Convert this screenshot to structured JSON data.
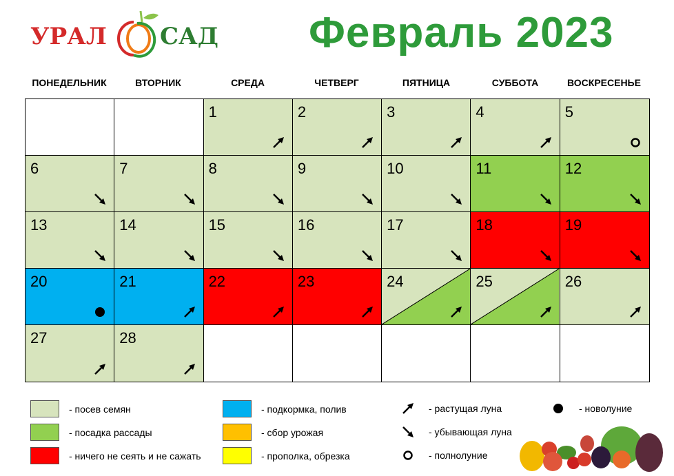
{
  "logo": {
    "text_left": "УРАЛ",
    "text_right": "САД"
  },
  "title": "Февраль 2023",
  "weekdays": [
    "ПОНЕДЕЛЬНИК",
    "ВТОРНИК",
    "СРЕДА",
    "ЧЕТВЕРГ",
    "ПЯТНИЦА",
    "СУББОТА",
    "ВОСКРЕСЕНЬЕ"
  ],
  "colors": {
    "seeds": "#d7e4bd",
    "seedlings": "#92d050",
    "nothing": "#ff0000",
    "feeding": "#00b0f0",
    "harvest": "#ffc000",
    "weeding": "#ffff00",
    "title": "#2e9b3a"
  },
  "days": [
    {
      "day": "",
      "type": "empty",
      "moon": ""
    },
    {
      "day": "",
      "type": "empty",
      "moon": ""
    },
    {
      "day": "1",
      "type": "seeds",
      "moon": "waxing"
    },
    {
      "day": "2",
      "type": "seeds",
      "moon": "waxing"
    },
    {
      "day": "3",
      "type": "seeds",
      "moon": "waxing"
    },
    {
      "day": "4",
      "type": "seeds",
      "moon": "waxing"
    },
    {
      "day": "5",
      "type": "seeds",
      "moon": "full"
    },
    {
      "day": "6",
      "type": "seeds",
      "moon": "waning"
    },
    {
      "day": "7",
      "type": "seeds",
      "moon": "waning"
    },
    {
      "day": "8",
      "type": "seeds",
      "moon": "waning"
    },
    {
      "day": "9",
      "type": "seeds",
      "moon": "waning"
    },
    {
      "day": "10",
      "type": "seeds",
      "moon": "waning"
    },
    {
      "day": "11",
      "type": "seedlings",
      "moon": "waning"
    },
    {
      "day": "12",
      "type": "seedlings",
      "moon": "waning"
    },
    {
      "day": "13",
      "type": "seeds",
      "moon": "waning"
    },
    {
      "day": "14",
      "type": "seeds",
      "moon": "waning"
    },
    {
      "day": "15",
      "type": "seeds",
      "moon": "waning"
    },
    {
      "day": "16",
      "type": "seeds",
      "moon": "waning"
    },
    {
      "day": "17",
      "type": "seeds",
      "moon": "waning"
    },
    {
      "day": "18",
      "type": "nothing",
      "moon": "waning"
    },
    {
      "day": "19",
      "type": "nothing",
      "moon": "waning"
    },
    {
      "day": "20",
      "type": "feeding",
      "moon": "new"
    },
    {
      "day": "21",
      "type": "feeding",
      "moon": "waxing"
    },
    {
      "day": "22",
      "type": "nothing",
      "moon": "waxing"
    },
    {
      "day": "23",
      "type": "nothing",
      "moon": "waxing"
    },
    {
      "day": "24",
      "type": "seeds+seedlings",
      "moon": "waxing"
    },
    {
      "day": "25",
      "type": "seeds+seedlings",
      "moon": "waxing"
    },
    {
      "day": "26",
      "type": "seeds",
      "moon": "waxing"
    },
    {
      "day": "27",
      "type": "seeds",
      "moon": "waxing"
    },
    {
      "day": "28",
      "type": "seeds",
      "moon": "waxing"
    },
    {
      "day": "",
      "type": "empty",
      "moon": ""
    },
    {
      "day": "",
      "type": "empty",
      "moon": ""
    },
    {
      "day": "",
      "type": "empty",
      "moon": ""
    },
    {
      "day": "",
      "type": "empty",
      "moon": ""
    },
    {
      "day": "",
      "type": "empty",
      "moon": ""
    }
  ],
  "legend": {
    "seeds": "-  посев семян",
    "seedlings": "-  посадка рассады",
    "nothing": "-  ничего не сеять и не сажать",
    "feeding": "-  подкормка, полив",
    "harvest": "-  сбор урожая",
    "weeding": "-  прополка, обрезка",
    "waxing": "-  растущая луна",
    "waning": "-  убывающая луна",
    "full": "-  полнолуние",
    "new": "-  новолуние"
  }
}
